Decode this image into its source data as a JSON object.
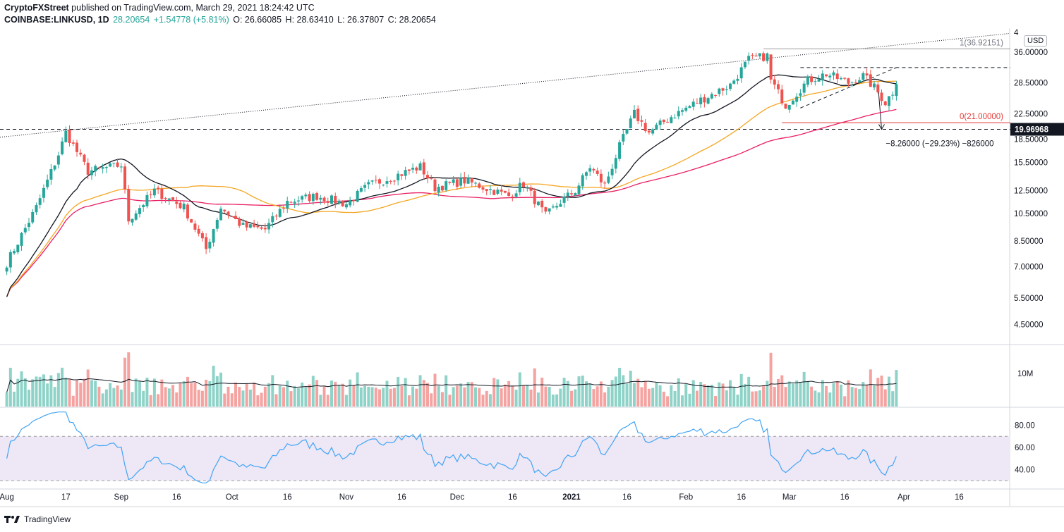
{
  "header": {
    "publisher": "CryptoFXStreet",
    "published_text": "published on TradingView.com, March 29, 2021 18:24:42 UTC",
    "symbol": "COINBASE:LINKUSD, 1D",
    "last": "28.20654",
    "change": "+1.54778 (+5.81%)",
    "open": "O: 26.66085",
    "high": "H: 28.63410",
    "low": "L: 26.37807",
    "close": "C: 28.20654"
  },
  "footer": {
    "brand": "TradingView"
  },
  "colors": {
    "up": "#26a69a",
    "down": "#ef5350",
    "ma20": "#131722",
    "ma50": "#f5a623",
    "ma100": "#e91e63",
    "rsi": "#42a5f5",
    "rsi_band": "#ede7f6"
  },
  "chart_data": {
    "type": "candlestick",
    "currency_badge": "USD",
    "price_axis_labels": [
      "4.50000",
      "5.50000",
      "7.00000",
      "8.50000",
      "10.50000",
      "12.50000",
      "15.50000",
      "18.50000",
      "22.50000",
      "28.50000",
      "36.00000"
    ],
    "price_axis_ticks": [
      4.5,
      5.5,
      7.0,
      8.5,
      10.5,
      12.5,
      15.5,
      18.5,
      22.5,
      28.5,
      36.0
    ],
    "price_axis_clipped_label": "4",
    "last_price_label": "19.96968",
    "last_price_value": 19.96968,
    "x_axis_labels": [
      "Aug",
      "17",
      "Sep",
      "16",
      "Oct",
      "16",
      "Nov",
      "16",
      "Dec",
      "16",
      "2021",
      "16",
      "Feb",
      "16",
      "Mar",
      "16",
      "Apr",
      "16"
    ],
    "x_axis_label_day": [
      0,
      16,
      31,
      46,
      61,
      76,
      92,
      107,
      122,
      137,
      153,
      168,
      184,
      199,
      212,
      227,
      243,
      258
    ],
    "start_date": "2020-08-01",
    "key_points": [
      {
        "day": 0,
        "close": 7.2
      },
      {
        "day": 8,
        "close": 11.0
      },
      {
        "day": 14,
        "close": 16.5
      },
      {
        "day": 16,
        "close": 19.5
      },
      {
        "day": 22,
        "close": 14.5
      },
      {
        "day": 31,
        "close": 15.2
      },
      {
        "day": 33,
        "close": 10.0
      },
      {
        "day": 40,
        "close": 12.5
      },
      {
        "day": 48,
        "close": 11.0
      },
      {
        "day": 54,
        "close": 8.0
      },
      {
        "day": 58,
        "close": 11.0
      },
      {
        "day": 64,
        "close": 9.5
      },
      {
        "day": 70,
        "close": 9.3
      },
      {
        "day": 76,
        "close": 11.5
      },
      {
        "day": 84,
        "close": 12.0
      },
      {
        "day": 92,
        "close": 11.3
      },
      {
        "day": 98,
        "close": 13.0
      },
      {
        "day": 112,
        "close": 15.0
      },
      {
        "day": 116,
        "close": 12.8
      },
      {
        "day": 124,
        "close": 13.5
      },
      {
        "day": 136,
        "close": 12.0
      },
      {
        "day": 140,
        "close": 13.2
      },
      {
        "day": 146,
        "close": 10.3
      },
      {
        "day": 150,
        "close": 11.5
      },
      {
        "day": 154,
        "close": 12.5
      },
      {
        "day": 158,
        "close": 15.0
      },
      {
        "day": 162,
        "close": 13.0
      },
      {
        "day": 166,
        "close": 17.5
      },
      {
        "day": 170,
        "close": 22.5
      },
      {
        "day": 174,
        "close": 19.5
      },
      {
        "day": 180,
        "close": 22.0
      },
      {
        "day": 188,
        "close": 25.0
      },
      {
        "day": 196,
        "close": 28.0
      },
      {
        "day": 201,
        "close": 34.0
      },
      {
        "day": 206,
        "close": 35.0
      },
      {
        "day": 207,
        "close": 29.0
      },
      {
        "day": 211,
        "close": 24.0
      },
      {
        "day": 217,
        "close": 29.0
      },
      {
        "day": 222,
        "close": 30.5
      },
      {
        "day": 228,
        "close": 28.5
      },
      {
        "day": 232,
        "close": 30.0
      },
      {
        "day": 235,
        "close": 27.5
      },
      {
        "day": 238,
        "close": 24.5
      },
      {
        "day": 240,
        "close": 26.6
      },
      {
        "day": 241,
        "close": 28.2
      }
    ],
    "annotations": {
      "fib_1_label": "1(36.92151)",
      "fib_1_value": 36.92151,
      "fib_0_label": "0(21.00000)",
      "fib_0_value": 21.0,
      "measure_label": "−8.26000 (−29.23%) −826000",
      "resistance_value": 32.0
    },
    "volume_axis_label": "10M",
    "rsi_axis_labels": [
      "80.00",
      "60.00",
      "40.00"
    ],
    "rsi_axis_values": [
      80,
      60,
      40
    ],
    "rsi_band": [
      30,
      70
    ]
  }
}
